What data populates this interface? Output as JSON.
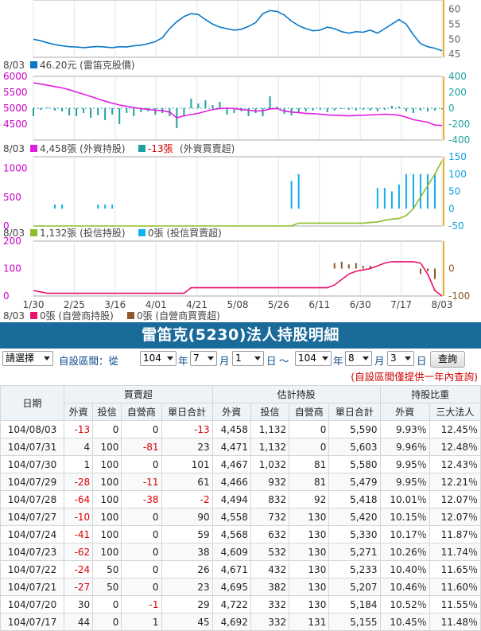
{
  "colors": {
    "price": "#0a78c8",
    "foreign_hold": "#e020e0",
    "foreign_net": "#20a0a0",
    "trust_hold": "#8cbe28",
    "trust_net": "#10b0f0",
    "dealer_hold": "#e8106c",
    "dealer_net": "#8a5a2a",
    "marker": "#e8b030",
    "header_bg": "#1a6a9a",
    "negative": "#d00000"
  },
  "chart_data": [
    {
      "type": "line",
      "series": [
        {
          "name": "雷笛克股價",
          "values": [
            50,
            49.5,
            48.8,
            48.2,
            47.8,
            47.5,
            47.4,
            47.2,
            47.4,
            47.6,
            47.4,
            47.2,
            47.5,
            47.4,
            47.8,
            48.0,
            48.5,
            49.2,
            50.5,
            53.5,
            55.8,
            57.5,
            58.5,
            58.2,
            56.5,
            55.0,
            54.0,
            53.5,
            53.0,
            53.3,
            54.2,
            55.5,
            58.5,
            59.5,
            59.2,
            58.0,
            56.0,
            54.5,
            53.5,
            52.8,
            53.0,
            54.0,
            53.5,
            52.5,
            52.0,
            52.5,
            52.3,
            53.0,
            52.0,
            53.5,
            55.0,
            56.5,
            55.0,
            51.5,
            48.5,
            47.5,
            47.0,
            46.2
          ]
        }
      ],
      "ylim": [
        44,
        63
      ],
      "ticks_right": [
        "60",
        "55",
        "50",
        "45"
      ],
      "caption": {
        "date": "8/03",
        "value": "46.20元",
        "label": "(雷笛克股價)"
      }
    },
    {
      "type": "line",
      "series": [
        {
          "name": "外資持股",
          "values": [
            5800,
            5760,
            5720,
            5680,
            5640,
            5580,
            5510,
            5440,
            5370,
            5290,
            5220,
            5160,
            5100,
            5060,
            5020,
            4990,
            4960,
            4940,
            4920,
            4880,
            4700,
            4760,
            4800,
            4840,
            4900,
            4960,
            4990,
            5000,
            4990,
            4960,
            4940,
            4910,
            4920,
            4980,
            4990,
            4910,
            4880,
            4860,
            4840,
            4830,
            4810,
            4790,
            4780,
            4770,
            4760,
            4770,
            4780,
            4790,
            4800,
            4810,
            4800,
            4780,
            4720,
            4640,
            4600,
            4560,
            4470,
            4458
          ]
        },
        {
          "name": "外資買賣超",
          "values": [
            -100,
            -20,
            10,
            -30,
            -40,
            -90,
            -100,
            -60,
            -120,
            -90,
            -150,
            -80,
            -200,
            -60,
            -100,
            -50,
            -40,
            -80,
            -60,
            -100,
            -250,
            -90,
            120,
            60,
            100,
            40,
            80,
            -80,
            -60,
            -40,
            -100,
            -60,
            -100,
            150,
            20,
            -70,
            -90,
            -60,
            -40,
            -30,
            -20,
            -50,
            -30,
            -10,
            -20,
            -30,
            -20,
            -30,
            -40,
            -20,
            30,
            20,
            -40,
            -60,
            -30,
            -40,
            -28,
            -13
          ]
        }
      ],
      "ylim_left": [
        4000,
        6000
      ],
      "ylim_right": [
        -400,
        400
      ],
      "ticks_left": [
        "6000",
        "5500",
        "5000",
        "4500"
      ],
      "ticks_right": [
        "400",
        "200",
        "0",
        "-200",
        "-400"
      ],
      "caption": {
        "date": "8/03",
        "hold_value": "4,458張",
        "hold_label": "(外資持股)",
        "net_value": "-13張",
        "net_label": "(外資買賣超)"
      }
    },
    {
      "type": "line",
      "series": [
        {
          "name": "投信持股",
          "values": [
            0,
            0,
            0,
            0,
            0,
            0,
            0,
            0,
            0,
            0,
            0,
            0,
            0,
            0,
            0,
            0,
            0,
            0,
            0,
            0,
            0,
            0,
            0,
            0,
            0,
            0,
            0,
            0,
            0,
            0,
            0,
            0,
            0,
            0,
            0,
            0,
            0,
            50,
            50,
            50,
            50,
            50,
            50,
            50,
            50,
            50,
            50,
            60,
            70,
            100,
            120,
            130,
            180,
            300,
            500,
            700,
            900,
            1132
          ]
        },
        {
          "name": "投信買賣超",
          "values": [
            0,
            0,
            0,
            12,
            12,
            0,
            0,
            0,
            0,
            12,
            12,
            12,
            0,
            0,
            0,
            0,
            0,
            0,
            0,
            0,
            0,
            0,
            0,
            0,
            0,
            0,
            0,
            0,
            0,
            0,
            0,
            0,
            0,
            0,
            0,
            0,
            80,
            100,
            0,
            0,
            0,
            0,
            0,
            0,
            0,
            0,
            0,
            0,
            60,
            60,
            50,
            70,
            100,
            100,
            100,
            100,
            100,
            0
          ]
        }
      ],
      "ylim_left": [
        0,
        1200
      ],
      "ylim_right": [
        -50,
        150
      ],
      "ticks_left": [
        "1000",
        "500",
        "0"
      ],
      "ticks_right": [
        "150",
        "100",
        "50",
        "0",
        "-50"
      ],
      "caption": {
        "date": "8/03",
        "hold_value": "1,132張",
        "hold_label": "(投信持股)",
        "net_value": "0張",
        "net_label": "(投信買賣超)"
      }
    },
    {
      "type": "line",
      "series": [
        {
          "name": "自營商持股",
          "values": [
            20,
            15,
            10,
            10,
            10,
            10,
            10,
            10,
            10,
            10,
            10,
            10,
            10,
            10,
            10,
            10,
            10,
            10,
            10,
            10,
            10,
            10,
            30,
            30,
            30,
            30,
            30,
            30,
            30,
            30,
            30,
            30,
            30,
            30,
            30,
            30,
            30,
            30,
            30,
            30,
            30,
            30,
            40,
            60,
            80,
            90,
            95,
            100,
            110,
            120,
            125,
            125,
            125,
            125,
            120,
            80,
            20,
            0
          ]
        },
        {
          "name": "自營商買賣超",
          "values": [
            0,
            0,
            0,
            0,
            0,
            0,
            0,
            0,
            0,
            0,
            0,
            0,
            0,
            0,
            0,
            0,
            0,
            0,
            0,
            0,
            0,
            0,
            0,
            0,
            0,
            0,
            0,
            0,
            0,
            0,
            0,
            0,
            0,
            0,
            0,
            0,
            0,
            0,
            0,
            0,
            0,
            0,
            20,
            25,
            15,
            20,
            10,
            10,
            0,
            0,
            0,
            0,
            0,
            0,
            -20,
            -10,
            -38,
            0
          ]
        }
      ],
      "ylim_left": [
        0,
        200
      ],
      "ylim_right": [
        -100,
        100
      ],
      "ticks_left": [
        "200",
        "100",
        "0"
      ],
      "ticks_right": [
        "0",
        "-100"
      ],
      "caption": {
        "date": "8/03",
        "hold_value": "0張",
        "hold_label": "(自營商持股)",
        "net_value": "0張",
        "net_label": "(自營商買賣超)"
      }
    }
  ],
  "x_axis_labels": [
    "1/30",
    "2/25",
    "3/16",
    "4/01",
    "4/21",
    "5/08",
    "5/26",
    "6/11",
    "6/30",
    "7/17",
    "8/03"
  ],
  "title": "雷笛克(5230)法人持股明細",
  "filter": {
    "preset": "請選擇",
    "custom_label": "自設區間：從",
    "from_year": "104",
    "year_unit": "年",
    "from_month": "7",
    "month_unit": "月",
    "from_day": "1",
    "day_unit": "日",
    "tilde": "～",
    "to_year": "104",
    "to_month": "8",
    "to_day": "3",
    "query": "查詢"
  },
  "note": "(自設區間僅提供一年內查詢)",
  "table": {
    "group_headers": [
      "買賣超",
      "估計持股",
      "持股比重"
    ],
    "date_header": "日期",
    "columns": [
      "外資",
      "投信",
      "自營商",
      "單日合計",
      "外資",
      "投信",
      "自營商",
      "單日合計",
      "外資",
      "三大法人"
    ],
    "rows": [
      [
        "104/08/03",
        "-13",
        "0",
        "0",
        "-13",
        "4,458",
        "1,132",
        "0",
        "5,590",
        "9.93％",
        "12.45％"
      ],
      [
        "104/07/31",
        "4",
        "100",
        "-81",
        "23",
        "4,471",
        "1,132",
        "0",
        "5,603",
        "9.96％",
        "12.48％"
      ],
      [
        "104/07/30",
        "1",
        "100",
        "0",
        "101",
        "4,467",
        "1,032",
        "81",
        "5,580",
        "9.95％",
        "12.43％"
      ],
      [
        "104/07/29",
        "-28",
        "100",
        "-11",
        "61",
        "4,466",
        "932",
        "81",
        "5,479",
        "9.95％",
        "12.21％"
      ],
      [
        "104/07/28",
        "-64",
        "100",
        "-38",
        "-2",
        "4,494",
        "832",
        "92",
        "5,418",
        "10.01％",
        "12.07％"
      ],
      [
        "104/07/27",
        "-10",
        "100",
        "0",
        "90",
        "4,558",
        "732",
        "130",
        "5,420",
        "10.15％",
        "12.07％"
      ],
      [
        "104/07/24",
        "-41",
        "100",
        "0",
        "59",
        "4,568",
        "632",
        "130",
        "5,330",
        "10.17％",
        "11.87％"
      ],
      [
        "104/07/23",
        "-62",
        "100",
        "0",
        "38",
        "4,609",
        "532",
        "130",
        "5,271",
        "10.26％",
        "11.74％"
      ],
      [
        "104/07/22",
        "-24",
        "50",
        "0",
        "26",
        "4,671",
        "432",
        "130",
        "5,233",
        "10.40％",
        "11.65％"
      ],
      [
        "104/07/21",
        "-27",
        "50",
        "0",
        "23",
        "4,695",
        "382",
        "130",
        "5,207",
        "10.46％",
        "11.60％"
      ],
      [
        "104/07/20",
        "30",
        "0",
        "-1",
        "29",
        "4,722",
        "332",
        "130",
        "5,184",
        "10.52％",
        "11.55％"
      ],
      [
        "104/07/17",
        "44",
        "0",
        "1",
        "45",
        "4,692",
        "332",
        "131",
        "5,155",
        "10.45％",
        "11.48％"
      ]
    ]
  }
}
